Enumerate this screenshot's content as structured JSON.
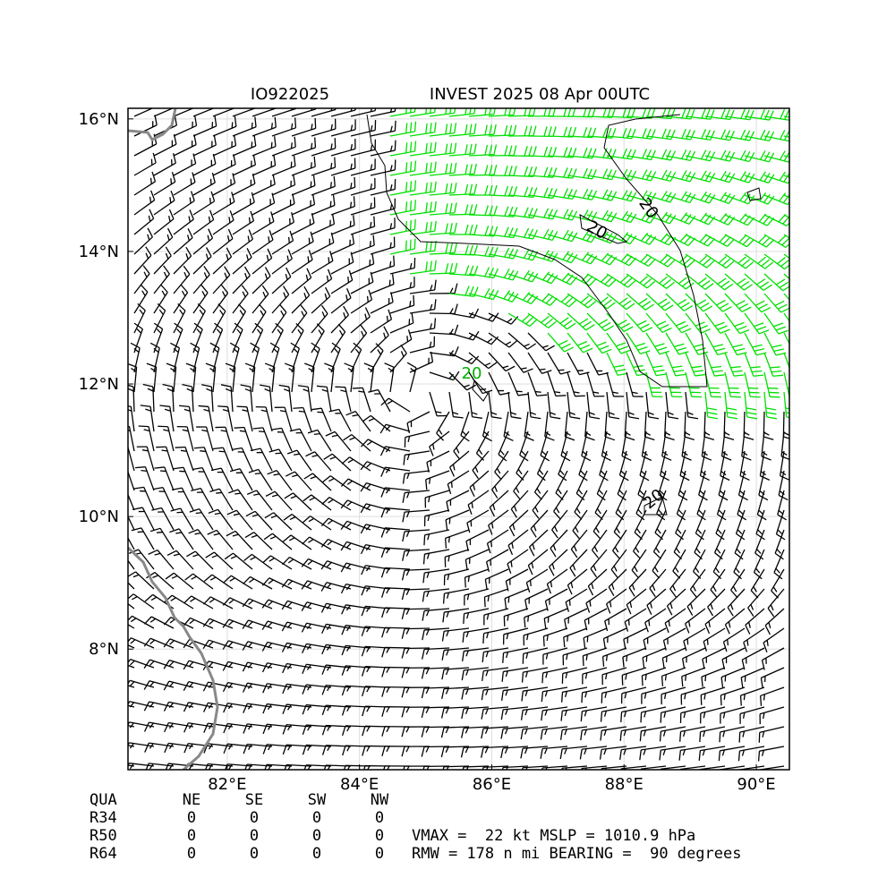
{
  "header": {
    "storm_id": "IO922025",
    "title": "INVEST 2025 08 Apr 00UTC"
  },
  "map": {
    "lonlim": [
      80.5,
      90.5
    ],
    "latlim": [
      6.18,
      16.16
    ],
    "lon_ticks": [
      {
        "value": 82,
        "label": "82°E"
      },
      {
        "value": 84,
        "label": "84°E"
      },
      {
        "value": 86,
        "label": "86°E"
      },
      {
        "value": 88,
        "label": "88°E"
      },
      {
        "value": 90,
        "label": "90°E"
      }
    ],
    "lat_ticks": [
      {
        "value": 16,
        "label": "16°N"
      },
      {
        "value": 14,
        "label": "14°N"
      },
      {
        "value": 12,
        "label": "12°N"
      },
      {
        "value": 10,
        "label": "10°N"
      },
      {
        "value": 8,
        "label": "8°N"
      }
    ],
    "contour_labels": [
      "20",
      "20",
      "20",
      "20"
    ]
  },
  "table": {
    "header": [
      "QUA",
      "NE",
      "SE",
      "SW",
      "NW"
    ],
    "rows": [
      [
        "R34",
        "0",
        "0",
        "0",
        "0"
      ],
      [
        "R50",
        "0",
        "0",
        "0",
        "0"
      ],
      [
        "R64",
        "0",
        "0",
        "0",
        "0"
      ]
    ]
  },
  "stats": [
    "VMAX =  22 kt MSLP = 1010.9 hPa",
    "RMW = 178 n mi BEARING =  90 degrees"
  ]
}
